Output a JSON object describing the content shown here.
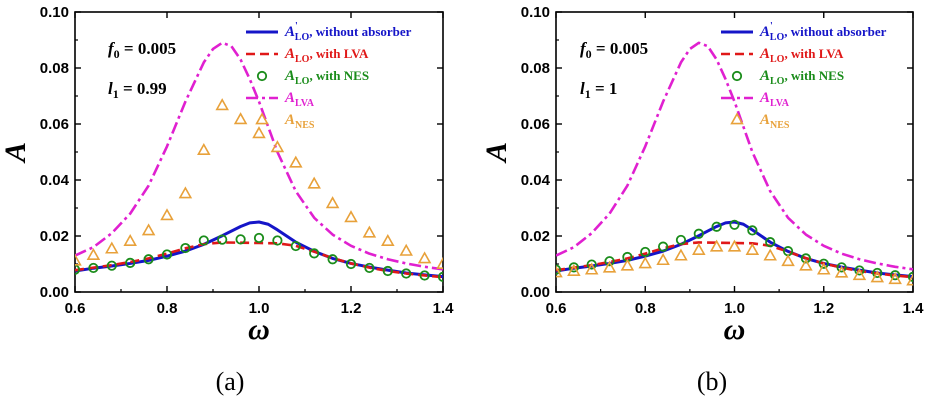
{
  "chart_data": [
    {
      "type": "line",
      "panel_label": "(a)",
      "xlabel": "ω",
      "ylabel": "A",
      "xlim": [
        0.6,
        1.4
      ],
      "ylim": [
        0.0,
        0.1
      ],
      "x_ticks": [
        "0.6",
        "0.8",
        "1.0",
        "1.2",
        "1.4"
      ],
      "y_ticks": [
        "0.00",
        "0.02",
        "0.04",
        "0.06",
        "0.08",
        "0.10"
      ],
      "annotations": [
        {
          "main": "f",
          "sub": "0",
          "rest": " = 0.005"
        },
        {
          "main": "l",
          "sub": "1",
          "rest": " = 0.99"
        }
      ],
      "legend_position": "top-right",
      "series": [
        {
          "name": "A'LO, without absorber",
          "legend": {
            "main": "A",
            "sup": "'",
            "sub": "LO",
            "rest": ", without absorber"
          },
          "style": "solid",
          "color": "#1515c8",
          "x": [
            0.6,
            0.64,
            0.68,
            0.72,
            0.76,
            0.8,
            0.84,
            0.88,
            0.92,
            0.96,
            0.98,
            1.0,
            1.02,
            1.04,
            1.08,
            1.12,
            1.16,
            1.2,
            1.24,
            1.28,
            1.32,
            1.36,
            1.4
          ],
          "y": [
            0.0075,
            0.0085,
            0.0093,
            0.0102,
            0.0113,
            0.0128,
            0.0146,
            0.017,
            0.0201,
            0.0234,
            0.0247,
            0.025,
            0.0242,
            0.0222,
            0.0178,
            0.0145,
            0.012,
            0.0102,
            0.0089,
            0.0078,
            0.0068,
            0.0061,
            0.0055
          ]
        },
        {
          "name": "ALO, with LVA",
          "legend": {
            "main": "A",
            "sup": "",
            "sub": "LO",
            "rest": ", with LVA"
          },
          "style": "dashed",
          "color": "#e01818",
          "x": [
            0.6,
            0.64,
            0.68,
            0.72,
            0.76,
            0.8,
            0.84,
            0.88,
            0.92,
            0.96,
            1.0,
            1.04,
            1.08,
            1.12,
            1.16,
            1.2,
            1.24,
            1.28,
            1.32,
            1.36,
            1.4
          ],
          "y": [
            0.0078,
            0.0087,
            0.0096,
            0.0107,
            0.012,
            0.0137,
            0.0156,
            0.0171,
            0.0177,
            0.0176,
            0.0175,
            0.0174,
            0.0165,
            0.0144,
            0.0121,
            0.0102,
            0.0087,
            0.0075,
            0.0066,
            0.0059,
            0.0053
          ]
        },
        {
          "name": "ALO, with NES",
          "legend": {
            "main": "A",
            "sup": "",
            "sub": "LO",
            "rest": ", with NES"
          },
          "style": "circle",
          "color": "#1a8c1a",
          "x": [
            0.6,
            0.64,
            0.68,
            0.72,
            0.76,
            0.8,
            0.84,
            0.88,
            0.92,
            0.96,
            1.0,
            1.04,
            1.08,
            1.12,
            1.16,
            1.2,
            1.24,
            1.28,
            1.32,
            1.36,
            1.4
          ],
          "y": [
            0.008,
            0.0086,
            0.0094,
            0.0104,
            0.0117,
            0.0134,
            0.0157,
            0.0184,
            0.0187,
            0.0188,
            0.0193,
            0.0184,
            0.0164,
            0.0138,
            0.0117,
            0.01,
            0.0086,
            0.0075,
            0.0066,
            0.0059,
            0.0054
          ]
        },
        {
          "name": "ALVA",
          "legend": {
            "main": "A",
            "sup": "",
            "sub": "LVA",
            "rest": ""
          },
          "style": "dashdot",
          "color": "#e020d0",
          "x": [
            0.6,
            0.64,
            0.68,
            0.72,
            0.76,
            0.8,
            0.84,
            0.88,
            0.9,
            0.92,
            0.94,
            0.96,
            0.98,
            1.0,
            1.04,
            1.08,
            1.12,
            1.16,
            1.2,
            1.24,
            1.28,
            1.32,
            1.36,
            1.4
          ],
          "y": [
            0.013,
            0.016,
            0.021,
            0.028,
            0.038,
            0.052,
            0.068,
            0.082,
            0.0868,
            0.089,
            0.0878,
            0.083,
            0.076,
            0.068,
            0.05,
            0.036,
            0.0265,
            0.0205,
            0.0165,
            0.0137,
            0.0117,
            0.0102,
            0.009,
            0.0081
          ]
        },
        {
          "name": "ANES",
          "legend": {
            "main": "A",
            "sup": "",
            "sub": "NES",
            "rest": ""
          },
          "style": "triangle",
          "color": "#e8a13a",
          "x": [
            0.6,
            0.64,
            0.68,
            0.72,
            0.76,
            0.8,
            0.84,
            0.88,
            0.92,
            0.96,
            1.0,
            1.04,
            1.08,
            1.12,
            1.16,
            1.2,
            1.24,
            1.28,
            1.32,
            1.36,
            1.4
          ],
          "y": [
            0.011,
            0.013,
            0.0153,
            0.018,
            0.0218,
            0.0272,
            0.035,
            0.0505,
            0.0665,
            0.0615,
            0.0565,
            0.0515,
            0.046,
            0.0385,
            0.0315,
            0.0265,
            0.021,
            0.018,
            0.0145,
            0.0118,
            0.0098
          ]
        }
      ]
    },
    {
      "type": "line",
      "panel_label": "(b)",
      "xlabel": "ω",
      "ylabel": "A",
      "xlim": [
        0.6,
        1.4
      ],
      "ylim": [
        0.0,
        0.1
      ],
      "x_ticks": [
        "0.6",
        "0.8",
        "1.0",
        "1.2",
        "1.4"
      ],
      "y_ticks": [
        "0.00",
        "0.02",
        "0.04",
        "0.06",
        "0.08",
        "0.10"
      ],
      "annotations": [
        {
          "main": "f",
          "sub": "0",
          "rest": " = 0.005"
        },
        {
          "main": "l",
          "sub": "1",
          "rest": " = 1"
        }
      ],
      "legend_position": "top-right",
      "series": [
        {
          "name": "A'LO, without absorber",
          "legend": {
            "main": "A",
            "sup": "'",
            "sub": "LO",
            "rest": ", without absorber"
          },
          "style": "solid",
          "color": "#1515c8",
          "x": [
            0.6,
            0.64,
            0.68,
            0.72,
            0.76,
            0.8,
            0.84,
            0.88,
            0.92,
            0.96,
            0.98,
            1.0,
            1.02,
            1.04,
            1.08,
            1.12,
            1.16,
            1.2,
            1.24,
            1.28,
            1.32,
            1.36,
            1.4
          ],
          "y": [
            0.0075,
            0.0085,
            0.0093,
            0.0102,
            0.0113,
            0.0128,
            0.0146,
            0.017,
            0.0201,
            0.0234,
            0.0247,
            0.025,
            0.0242,
            0.0222,
            0.0178,
            0.0145,
            0.012,
            0.0102,
            0.0089,
            0.0078,
            0.0068,
            0.0061,
            0.0055
          ]
        },
        {
          "name": "ALO, with LVA",
          "legend": {
            "main": "A",
            "sup": "",
            "sub": "LO",
            "rest": ", with LVA"
          },
          "style": "dashed",
          "color": "#e01818",
          "x": [
            0.6,
            0.64,
            0.68,
            0.72,
            0.76,
            0.8,
            0.84,
            0.88,
            0.92,
            0.96,
            1.0,
            1.04,
            1.08,
            1.12,
            1.16,
            1.2,
            1.24,
            1.28,
            1.32,
            1.36,
            1.4
          ],
          "y": [
            0.0078,
            0.0087,
            0.0096,
            0.0107,
            0.012,
            0.0137,
            0.0156,
            0.0171,
            0.0177,
            0.0176,
            0.0175,
            0.0174,
            0.0165,
            0.0144,
            0.0121,
            0.0102,
            0.0087,
            0.0075,
            0.0066,
            0.0059,
            0.0053
          ]
        },
        {
          "name": "ALO, with NES",
          "legend": {
            "main": "A",
            "sup": "",
            "sub": "LO",
            "rest": ", with NES"
          },
          "style": "circle",
          "color": "#1a8c1a",
          "x": [
            0.6,
            0.64,
            0.68,
            0.72,
            0.76,
            0.8,
            0.84,
            0.88,
            0.92,
            0.96,
            1.0,
            1.04,
            1.08,
            1.12,
            1.16,
            1.2,
            1.24,
            1.28,
            1.32,
            1.36,
            1.4
          ],
          "y": [
            0.008,
            0.0088,
            0.0098,
            0.011,
            0.0125,
            0.0143,
            0.0162,
            0.0186,
            0.0208,
            0.0233,
            0.024,
            0.022,
            0.0178,
            0.0146,
            0.012,
            0.0101,
            0.0088,
            0.0077,
            0.0068,
            0.006,
            0.0054
          ]
        },
        {
          "name": "ALVA",
          "legend": {
            "main": "A",
            "sup": "",
            "sub": "LVA",
            "rest": ""
          },
          "style": "dashdot",
          "color": "#e020d0",
          "x": [
            0.6,
            0.64,
            0.68,
            0.72,
            0.76,
            0.8,
            0.84,
            0.88,
            0.9,
            0.92,
            0.94,
            0.96,
            0.98,
            1.0,
            1.04,
            1.08,
            1.12,
            1.16,
            1.2,
            1.24,
            1.28,
            1.32,
            1.36,
            1.4
          ],
          "y": [
            0.013,
            0.016,
            0.021,
            0.028,
            0.038,
            0.052,
            0.068,
            0.082,
            0.0868,
            0.089,
            0.0878,
            0.083,
            0.076,
            0.068,
            0.05,
            0.036,
            0.0265,
            0.0205,
            0.0165,
            0.0137,
            0.0117,
            0.0102,
            0.009,
            0.0081
          ]
        },
        {
          "name": "ANES",
          "legend": {
            "main": "A",
            "sup": "",
            "sub": "NES",
            "rest": ""
          },
          "style": "triangle",
          "color": "#e8a13a",
          "x": [
            0.6,
            0.64,
            0.68,
            0.72,
            0.76,
            0.8,
            0.84,
            0.88,
            0.92,
            0.96,
            1.0,
            1.04,
            1.08,
            1.12,
            1.16,
            1.2,
            1.24,
            1.28,
            1.32,
            1.36,
            1.4
          ],
          "y": [
            0.0068,
            0.0073,
            0.0078,
            0.0085,
            0.0092,
            0.01,
            0.0112,
            0.0128,
            0.0148,
            0.016,
            0.016,
            0.0148,
            0.0128,
            0.0108,
            0.0092,
            0.0078,
            0.0067,
            0.0058,
            0.005,
            0.0044,
            0.0039
          ]
        }
      ]
    }
  ]
}
